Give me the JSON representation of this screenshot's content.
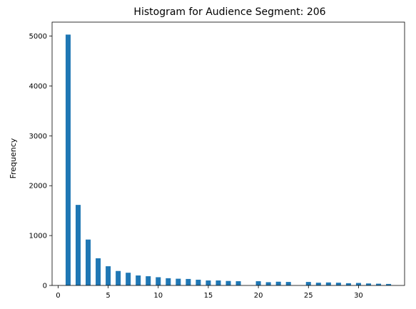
{
  "chart_data": {
    "type": "bar",
    "title": "Histogram for Audience Segment: 206",
    "xlabel": "",
    "ylabel": "Frequency",
    "xlim": [
      -0.6,
      34.6
    ],
    "ylim": [
      0,
      5280
    ],
    "x_ticks": [
      0,
      5,
      10,
      15,
      20,
      25,
      30
    ],
    "y_ticks": [
      0,
      1000,
      2000,
      3000,
      4000,
      5000
    ],
    "bar_width": 0.5,
    "bar_color": "#1f77b4",
    "grid": false,
    "legend": "none",
    "x": [
      1,
      2,
      3,
      4,
      5,
      6,
      7,
      8,
      9,
      10,
      11,
      12,
      13,
      14,
      15,
      16,
      17,
      18,
      19,
      20,
      21,
      22,
      23,
      24,
      25,
      26,
      27,
      28,
      29,
      30,
      31,
      32,
      33
    ],
    "values": [
      5030,
      1615,
      920,
      545,
      385,
      290,
      255,
      200,
      185,
      165,
      145,
      135,
      130,
      115,
      100,
      100,
      90,
      85,
      0,
      85,
      65,
      75,
      70,
      0,
      70,
      55,
      60,
      55,
      45,
      50,
      40,
      35,
      30
    ]
  }
}
